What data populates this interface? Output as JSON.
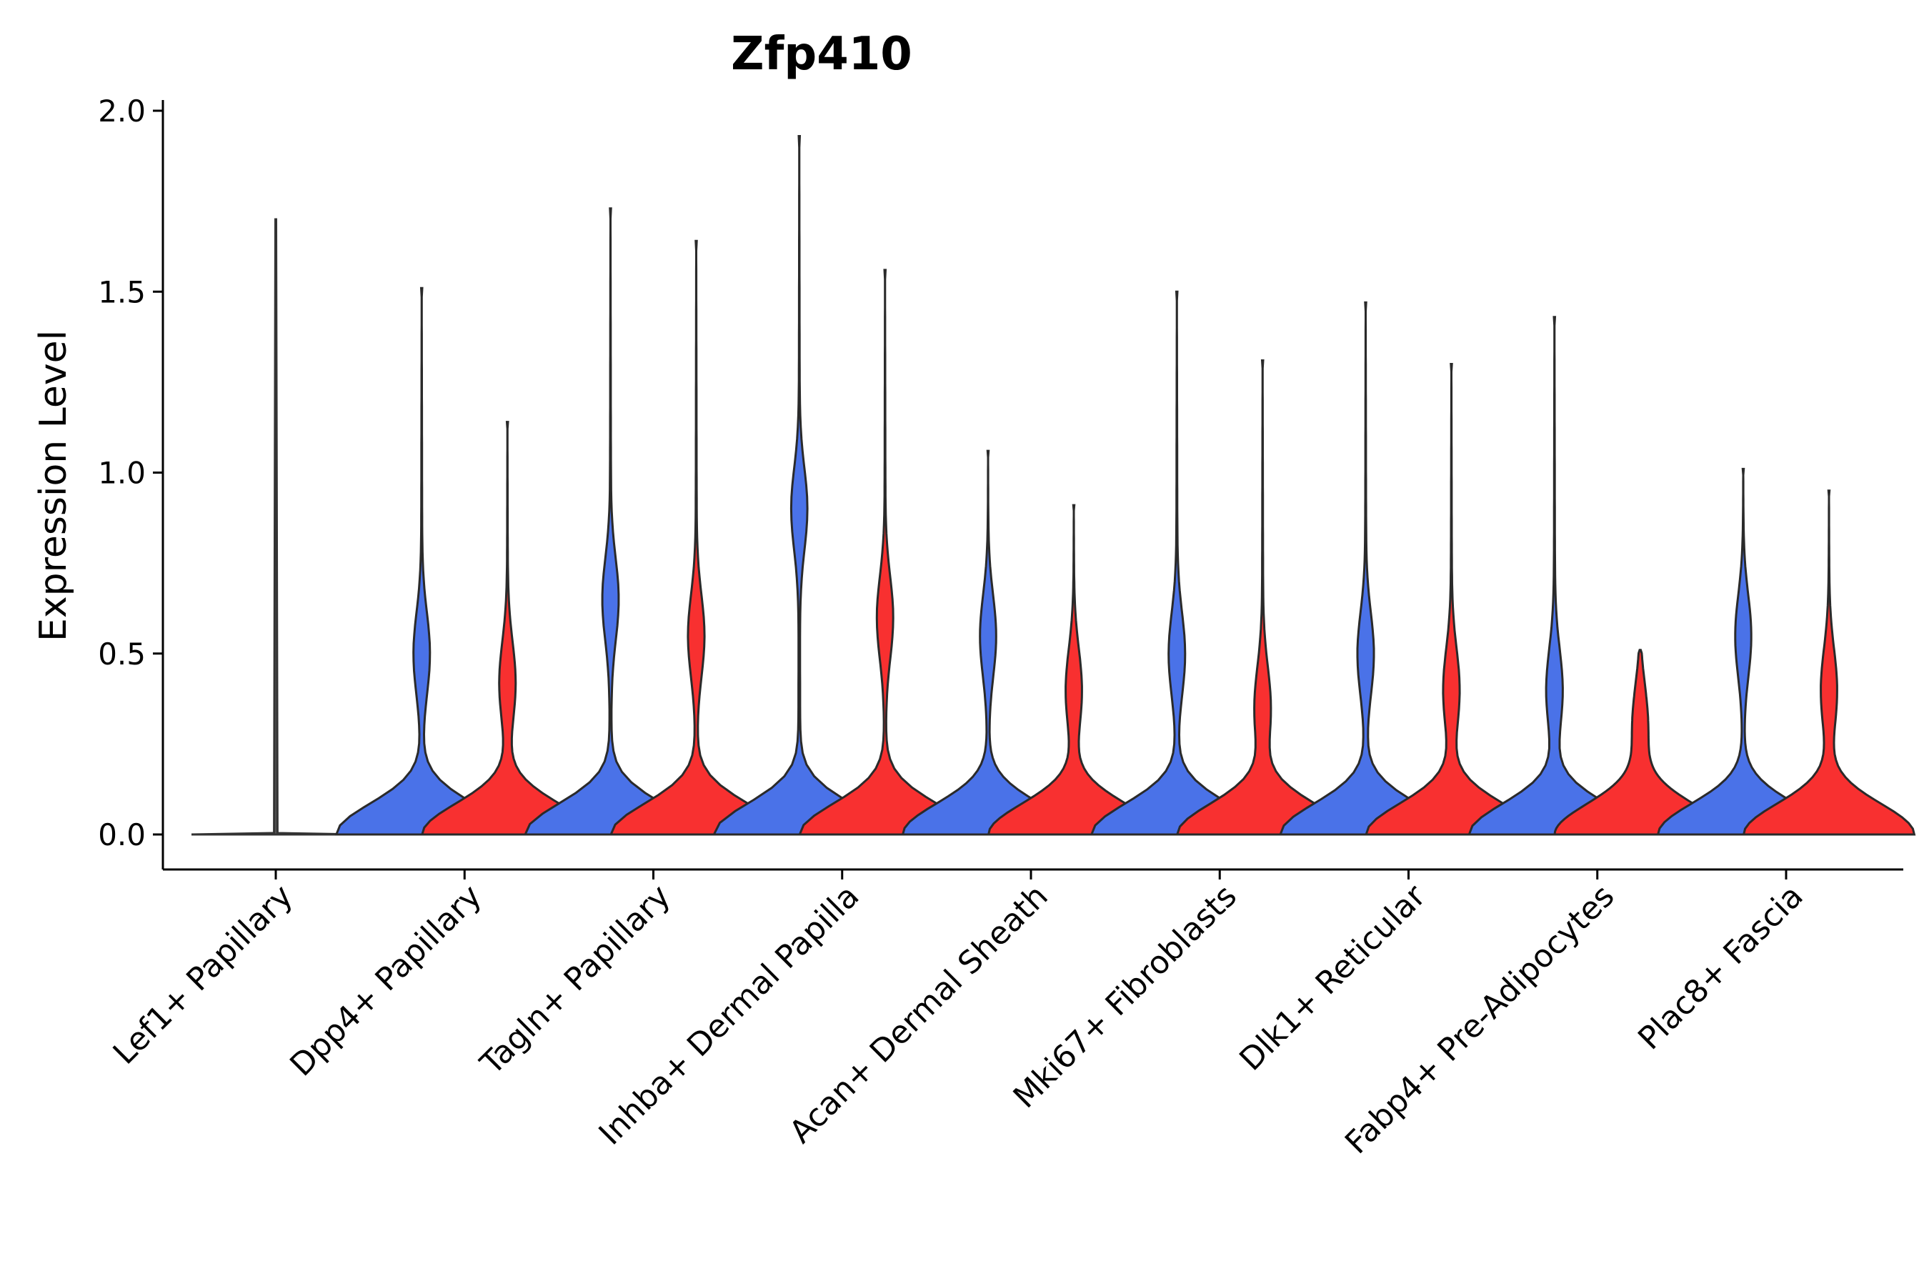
{
  "chart_data": {
    "type": "violin",
    "title": "Zfp410",
    "xlabel": "",
    "ylabel": "Expression Level",
    "ylim": [
      -0.1,
      2.02
    ],
    "yticks": [
      0.0,
      0.5,
      1.0,
      1.5,
      2.0
    ],
    "ytick_labels": [
      "0.0",
      "0.5",
      "1.0",
      "1.5",
      "2.0"
    ],
    "categories": [
      "Lef1+ Papillary",
      "Dpp4+ Papillary",
      "Tagln+ Papillary",
      "Inhba+ Dermal Papilla",
      "Acan+ Dermal Sheath",
      "Mki67+ Fibroblasts",
      "Dlk1+ Reticular",
      "Fabp4+ Pre-Adipocytes",
      "Plac8+ Fascia"
    ],
    "series": [
      {
        "name": "group 1",
        "color": "#4A72E8",
        "max_values": [
          1.7,
          1.51,
          1.73,
          1.93,
          1.06,
          1.5,
          1.47,
          1.43,
          1.01
        ],
        "density_peaks": [
          0.0,
          0.5,
          0.65,
          0.9,
          0.55,
          0.5,
          0.5,
          0.4,
          0.55
        ]
      },
      {
        "name": "group 2",
        "color": "#F83030",
        "max_values": [
          null,
          1.14,
          1.64,
          1.56,
          0.91,
          1.31,
          1.3,
          0.51,
          0.95
        ],
        "density_peaks": [
          null,
          0.42,
          0.55,
          0.6,
          0.4,
          0.35,
          0.4,
          0.3,
          0.4
        ]
      }
    ]
  }
}
